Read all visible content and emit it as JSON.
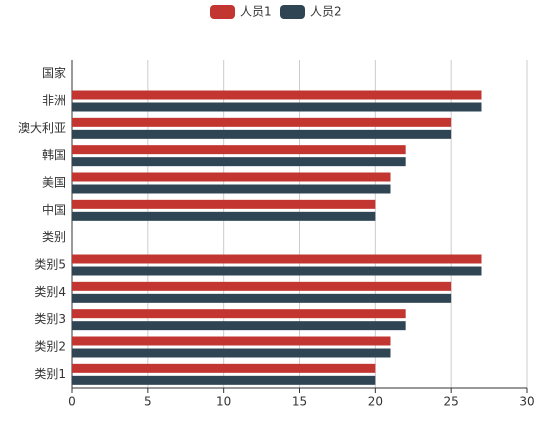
{
  "chart_data": {
    "type": "bar",
    "orientation": "horizontal",
    "categories": [
      "类别1",
      "类别2",
      "类别3",
      "类别4",
      "类别5",
      "类别",
      "中国",
      "美国",
      "韩国",
      "澳大利亚",
      "非洲",
      "国家"
    ],
    "series": [
      {
        "name": "人员1",
        "color": "#c23531",
        "values": [
          20,
          21,
          22,
          25,
          27,
          null,
          20,
          21,
          22,
          25,
          27,
          null
        ]
      },
      {
        "name": "人员2",
        "color": "#2f4554",
        "values": [
          20,
          21,
          22,
          25,
          27,
          null,
          20,
          21,
          22,
          25,
          27,
          null
        ]
      }
    ],
    "xlim": [
      0,
      30
    ],
    "xticks": [
      0,
      5,
      10,
      15,
      20,
      25,
      30
    ],
    "grid": true,
    "legend": "top"
  }
}
